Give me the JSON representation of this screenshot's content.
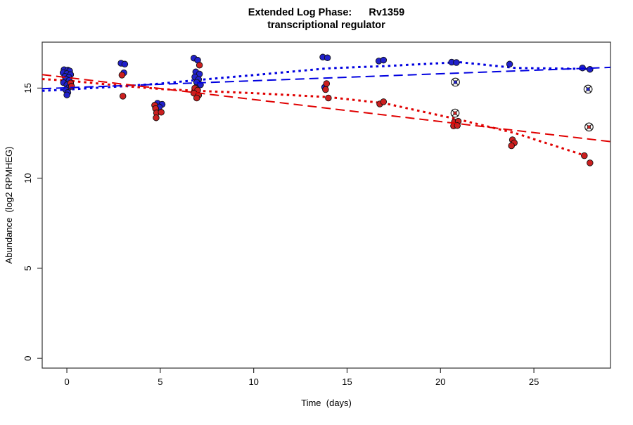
{
  "title": {
    "line1": "Extended Log Phase:      Rv1359",
    "line2": "transcriptional regulator"
  },
  "axes": {
    "xlabel": "Time  (days)",
    "ylabel": "Abundance  (log2 RPMHEG)"
  },
  "colors": {
    "blue_point_fill": "#2121CC",
    "red_point_fill": "#CC1F1F",
    "point_stroke": "#111111",
    "blue_line": "#0000E0",
    "red_line": "#E00000",
    "axis_color": "#333333",
    "background": "#ffffff"
  },
  "chart_data": {
    "type": "scatter",
    "title": "Extended Log Phase: Rv1359 transcriptional regulator",
    "xlabel": "Time (days)",
    "ylabel": "Abundance (log2 RPMHEG)",
    "xlim": [
      -1.32,
      29.1
    ],
    "ylim": [
      -0.54,
      17.55
    ],
    "x_ticks": [
      0,
      5,
      10,
      15,
      20,
      25
    ],
    "y_ticks": [
      0,
      5,
      10,
      15
    ],
    "grid": false,
    "legend": "none",
    "series": [
      {
        "name": "blue-series",
        "color": "#2121CC",
        "points": [
          [
            -0.15,
            16.02
          ],
          [
            0.05,
            16.0
          ],
          [
            0.15,
            15.95
          ],
          [
            -0.2,
            15.85
          ],
          [
            0.0,
            15.8
          ],
          [
            0.2,
            15.75
          ],
          [
            -0.1,
            15.65
          ],
          [
            0.1,
            15.6
          ],
          [
            -0.05,
            15.5
          ],
          [
            0.12,
            15.42
          ],
          [
            -0.18,
            15.3
          ],
          [
            0.0,
            15.18
          ],
          [
            0.1,
            15.02
          ],
          [
            -0.05,
            14.9
          ],
          [
            0.05,
            14.75
          ],
          [
            0.0,
            14.62
          ],
          [
            2.9,
            16.38
          ],
          [
            3.1,
            16.33
          ],
          [
            3.05,
            15.85
          ],
          [
            4.85,
            14.16
          ],
          [
            5.1,
            14.1
          ],
          [
            4.95,
            13.95
          ],
          [
            6.8,
            16.66
          ],
          [
            7.0,
            16.55
          ],
          [
            6.9,
            15.9
          ],
          [
            7.1,
            15.78
          ],
          [
            6.85,
            15.62
          ],
          [
            7.05,
            15.48
          ],
          [
            6.95,
            15.32
          ],
          [
            7.15,
            15.18
          ],
          [
            6.9,
            15.02
          ],
          [
            13.7,
            16.72
          ],
          [
            13.95,
            16.68
          ],
          [
            13.8,
            15.05
          ],
          [
            16.7,
            16.5
          ],
          [
            16.95,
            16.55
          ],
          [
            20.6,
            16.44
          ],
          [
            20.85,
            16.42
          ],
          [
            23.7,
            16.33
          ],
          [
            27.6,
            16.12
          ],
          [
            28.0,
            16.04
          ]
        ]
      },
      {
        "name": "red-series",
        "color": "#CC1F1F",
        "points": [
          [
            0.2,
            15.28
          ],
          [
            0.25,
            15.1
          ],
          [
            2.95,
            15.72
          ],
          [
            3.0,
            14.55
          ],
          [
            4.7,
            14.05
          ],
          [
            4.75,
            13.86
          ],
          [
            4.8,
            13.62
          ],
          [
            5.05,
            13.66
          ],
          [
            4.78,
            13.35
          ],
          [
            7.1,
            16.27
          ],
          [
            6.85,
            15.0
          ],
          [
            7.0,
            14.88
          ],
          [
            6.8,
            14.72
          ],
          [
            7.05,
            14.6
          ],
          [
            6.95,
            14.45
          ],
          [
            13.9,
            15.25
          ],
          [
            13.85,
            14.92
          ],
          [
            14.0,
            14.45
          ],
          [
            16.75,
            14.12
          ],
          [
            16.95,
            14.24
          ],
          [
            20.75,
            13.12
          ],
          [
            20.95,
            13.16
          ],
          [
            20.7,
            12.9
          ],
          [
            20.9,
            12.92
          ],
          [
            23.85,
            12.13
          ],
          [
            23.95,
            11.96
          ],
          [
            23.8,
            11.8
          ],
          [
            27.7,
            11.25
          ],
          [
            28.0,
            10.85
          ]
        ]
      }
    ],
    "outlier_marked_points": [
      {
        "day": 20.8,
        "value": 15.33,
        "series": "blue"
      },
      {
        "day": 20.78,
        "value": 13.61,
        "series": "red"
      },
      {
        "day": 27.9,
        "value": 14.94,
        "series": "blue"
      },
      {
        "day": 27.95,
        "value": 12.84,
        "series": "red"
      }
    ],
    "trend_lines": [
      {
        "name": "blue-dotted-fit",
        "style": "dotted",
        "color": "#0000E0",
        "width": 3,
        "points": [
          [
            -1.32,
            14.85
          ],
          [
            0,
            14.92
          ],
          [
            3,
            15.1
          ],
          [
            5,
            15.25
          ],
          [
            7,
            15.45
          ],
          [
            10,
            15.72
          ],
          [
            14,
            16.1
          ],
          [
            17,
            16.22
          ],
          [
            21,
            16.44
          ],
          [
            24,
            16.12
          ],
          [
            28,
            16.06
          ]
        ]
      },
      {
        "name": "red-dotted-fit",
        "style": "dotted",
        "color": "#E00000",
        "width": 3,
        "points": [
          [
            -1.32,
            15.5
          ],
          [
            0,
            15.42
          ],
          [
            3,
            15.12
          ],
          [
            5,
            14.95
          ],
          [
            7,
            14.85
          ],
          [
            10,
            14.72
          ],
          [
            14,
            14.5
          ],
          [
            17,
            14.16
          ],
          [
            21,
            13.25
          ],
          [
            24,
            12.5
          ],
          [
            27.6,
            11.3
          ]
        ]
      },
      {
        "name": "blue-dashed-fit",
        "style": "longdash",
        "color": "#0000E0",
        "width": 2,
        "points": [
          [
            -1.32,
            14.97
          ],
          [
            29.1,
            16.15
          ]
        ]
      },
      {
        "name": "red-dashed-fit",
        "style": "longdash",
        "color": "#E00000",
        "width": 2,
        "points": [
          [
            -1.32,
            15.75
          ],
          [
            29.1,
            12.03
          ]
        ]
      }
    ]
  }
}
